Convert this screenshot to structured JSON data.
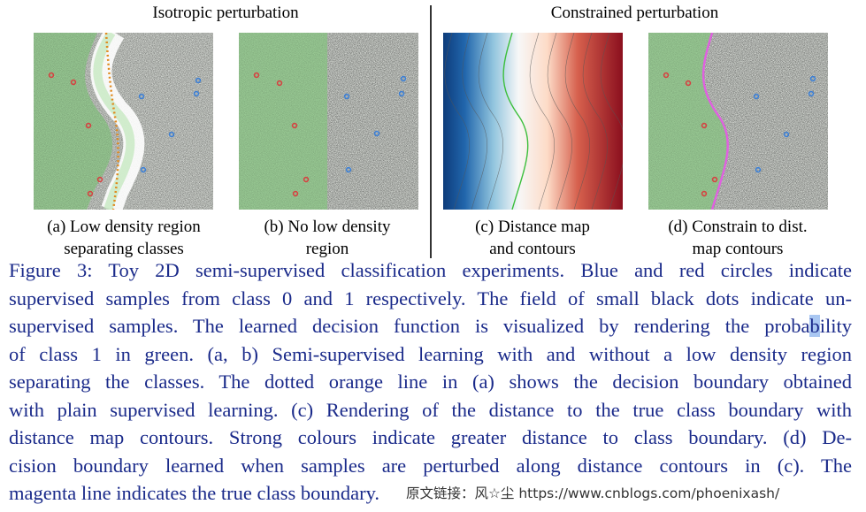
{
  "figure": {
    "group_titles": {
      "isotropic": "Isotropic perturbation",
      "constrained": "Constrained perturbation"
    },
    "subcaptions": {
      "a": [
        "(a) Low density region",
        "separating classes"
      ],
      "b": [
        "(b) No low density",
        "region"
      ],
      "c": [
        "(c) Distance map",
        "and contours"
      ],
      "d": [
        "(d) Constrain to dist.",
        "map contours"
      ]
    },
    "colors": {
      "green_region": "#9fd29a",
      "noise_gray": "#c8c8c8",
      "class0_blue": "#3b7fd6",
      "class1_red": "#d64040",
      "supervised_boundary_orange": "#e08a1e",
      "true_boundary_magenta": "#e060e0",
      "caption_text": "#1a2a8a"
    },
    "icons": [
      "red-circle-icon",
      "blue-circle-icon"
    ]
  },
  "caption": {
    "lines": [
      "Figure 3: Toy 2D semi-supervised classification experiments. Blue and red circles indicate",
      "supervised samples from class 0 and 1 respectively. The field of small black dots indicate un-",
      "supervised samples. The learned decision function is visualized by rendering the probability",
      "of class 1 in green. (a, b) Semi-supervised learning with and without a low density region",
      "separating the classes. The dotted orange line in (a) shows the decision boundary obtained",
      "with plain supervised learning. (c) Rendering of the distance to the true class boundary with",
      "distance map contours. Strong colours indicate greater distance to class boundary. (d) De-",
      "cision boundary learned when samples are perturbed along distance contours in (c). The",
      "magenta line indicates the true class boundary."
    ],
    "highlight": {
      "line": 2,
      "before": "supervised samples. The learned decision function is visualized by rendering the proba",
      "mark": "b",
      "after": "ility"
    },
    "watermark": "原文链接：风☆尘 https://www.cnblogs.com/phoenixash/"
  }
}
